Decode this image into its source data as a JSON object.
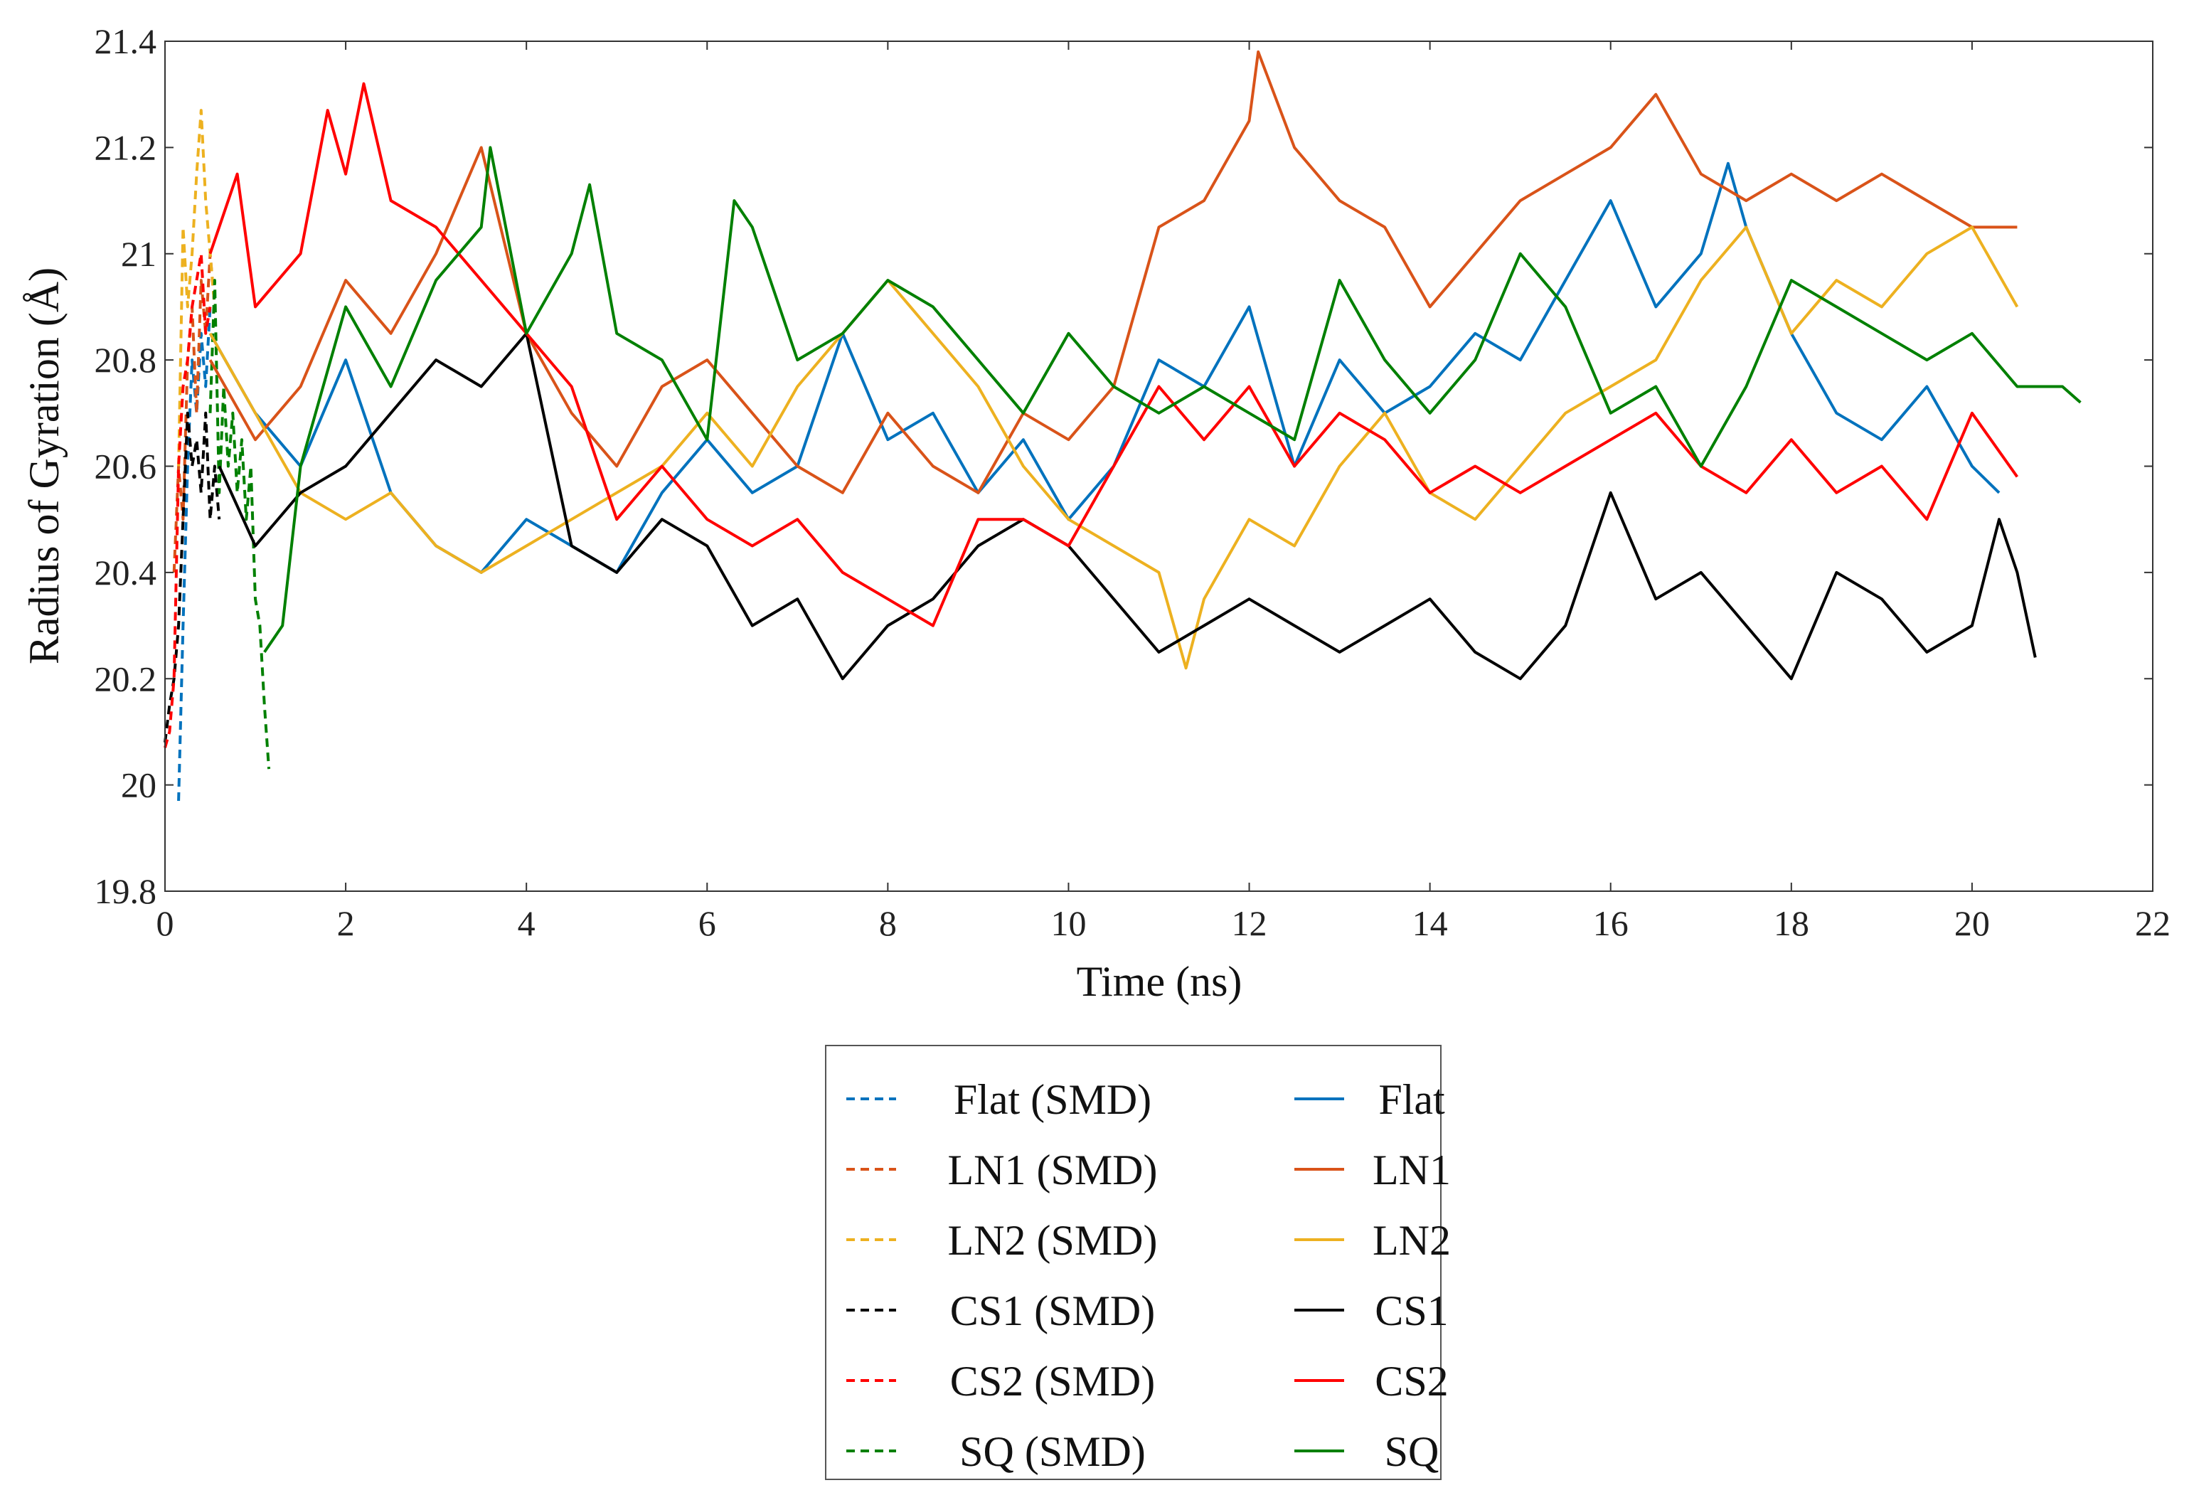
{
  "chart_data": {
    "type": "line",
    "title": "",
    "xlabel": "Time (ns)",
    "ylabel": "Radius of Gyration (Å)",
    "xlim": [
      0,
      22
    ],
    "ylim": [
      19.8,
      21.4
    ],
    "x_ticks": [
      0,
      2,
      4,
      6,
      8,
      10,
      12,
      14,
      16,
      18,
      20,
      22
    ],
    "y_ticks": [
      19.8,
      20,
      20.2,
      20.4,
      20.6,
      20.8,
      21,
      21.2,
      21.4
    ],
    "x_tick_labels": [
      "0",
      "2",
      "4",
      "6",
      "8",
      "10",
      "12",
      "14",
      "16",
      "18",
      "20",
      "22"
    ],
    "y_tick_labels": [
      "19.8",
      "20",
      "20.2",
      "20.4",
      "20.6",
      "20.8",
      "21",
      "21.2",
      "21.4"
    ],
    "grid": false,
    "legend_position": "bottom-center",
    "series": [
      {
        "name": "Flat (SMD)",
        "color": "#0072BD",
        "style": "dashed",
        "x": [
          0.15,
          0.2,
          0.25,
          0.3,
          0.35,
          0.4,
          0.45,
          0.5
        ],
        "y": [
          19.97,
          20.3,
          20.6,
          20.8,
          20.7,
          20.85,
          20.75,
          20.9
        ]
      },
      {
        "name": "LN1 (SMD)",
        "color": "#D95319",
        "style": "dashed",
        "x": [
          0.1,
          0.15,
          0.2,
          0.25,
          0.3,
          0.35,
          0.4,
          0.45,
          0.5,
          0.55
        ],
        "y": [
          20.4,
          20.6,
          20.5,
          20.8,
          20.9,
          20.7,
          20.95,
          20.85,
          21.0,
          20.9
        ]
      },
      {
        "name": "LN2 (SMD)",
        "color": "#EDB120",
        "style": "dashed",
        "x": [
          0.15,
          0.2,
          0.25,
          0.3,
          0.35,
          0.4,
          0.45,
          0.5,
          0.55
        ],
        "y": [
          20.6,
          21.05,
          20.9,
          21.0,
          21.15,
          21.27,
          21.1,
          21.0,
          20.9
        ]
      },
      {
        "name": "CS1 (SMD)",
        "color": "#000000",
        "style": "dashed",
        "x": [
          0.0,
          0.05,
          0.1,
          0.15,
          0.2,
          0.25,
          0.3,
          0.35,
          0.4,
          0.45,
          0.5,
          0.55,
          0.6
        ],
        "y": [
          20.08,
          20.15,
          20.2,
          20.3,
          20.5,
          20.7,
          20.6,
          20.65,
          20.55,
          20.7,
          20.5,
          20.6,
          20.5
        ]
      },
      {
        "name": "CS2 (SMD)",
        "color": "#FF0000",
        "style": "dashed",
        "x": [
          0.0,
          0.05,
          0.1,
          0.15,
          0.2,
          0.25,
          0.3,
          0.35,
          0.4,
          0.45,
          0.5
        ],
        "y": [
          20.07,
          20.1,
          20.2,
          20.6,
          20.75,
          20.8,
          20.9,
          20.95,
          21.0,
          20.85,
          20.9
        ]
      },
      {
        "name": "SQ (SMD)",
        "color": "#008000",
        "style": "dashed",
        "x": [
          0.5,
          0.55,
          0.6,
          0.65,
          0.7,
          0.75,
          0.8,
          0.85,
          0.9,
          0.95,
          1.0,
          1.05,
          1.1,
          1.15
        ],
        "y": [
          20.7,
          20.95,
          20.55,
          20.75,
          20.6,
          20.7,
          20.55,
          20.65,
          20.5,
          20.6,
          20.35,
          20.3,
          20.15,
          20.03
        ]
      },
      {
        "name": "Flat",
        "color": "#0072BD",
        "style": "solid",
        "x": [
          0.5,
          1,
          1.5,
          2,
          2.5,
          3,
          3.5,
          4,
          4.5,
          5,
          5.5,
          6,
          6.5,
          7,
          7.5,
          8,
          8.5,
          9,
          9.5,
          10,
          10.5,
          11,
          11.5,
          12,
          12.5,
          13,
          13.5,
          14,
          14.5,
          15,
          15.5,
          16,
          16.5,
          17,
          17.3,
          17.5,
          18,
          18.5,
          19,
          19.5,
          20,
          20.3
        ],
        "y": [
          20.85,
          20.7,
          20.6,
          20.8,
          20.55,
          20.45,
          20.4,
          20.5,
          20.45,
          20.4,
          20.55,
          20.65,
          20.55,
          20.6,
          20.85,
          20.65,
          20.7,
          20.55,
          20.65,
          20.5,
          20.6,
          20.8,
          20.75,
          20.9,
          20.6,
          20.8,
          20.7,
          20.75,
          20.85,
          20.8,
          20.95,
          21.1,
          20.9,
          21.0,
          21.17,
          21.05,
          20.85,
          20.7,
          20.65,
          20.75,
          20.6,
          20.55
        ]
      },
      {
        "name": "LN1",
        "color": "#D95319",
        "style": "solid",
        "x": [
          0.5,
          1,
          1.5,
          2,
          2.5,
          3,
          3.5,
          4,
          4.5,
          5,
          5.5,
          6,
          6.5,
          7,
          7.5,
          8,
          8.5,
          9,
          9.5,
          10,
          10.5,
          11,
          11.5,
          12,
          12.1,
          12.5,
          13,
          13.5,
          14,
          14.5,
          15,
          15.5,
          16,
          16.5,
          17,
          17.5,
          18,
          18.5,
          19,
          19.5,
          20,
          20.5
        ],
        "y": [
          20.8,
          20.65,
          20.75,
          20.95,
          20.85,
          21.0,
          21.2,
          20.85,
          20.7,
          20.6,
          20.75,
          20.8,
          20.7,
          20.6,
          20.55,
          20.7,
          20.6,
          20.55,
          20.7,
          20.65,
          20.75,
          21.05,
          21.1,
          21.25,
          21.38,
          21.2,
          21.1,
          21.05,
          20.9,
          21.0,
          21.1,
          21.15,
          21.2,
          21.3,
          21.15,
          21.1,
          21.15,
          21.1,
          21.15,
          21.1,
          21.05,
          21.05
        ]
      },
      {
        "name": "LN2",
        "color": "#EDB120",
        "style": "solid",
        "x": [
          0.5,
          1,
          1.5,
          2,
          2.5,
          3,
          3.5,
          4,
          4.5,
          5,
          5.5,
          6,
          6.5,
          7,
          7.5,
          8,
          8.5,
          9,
          9.5,
          10,
          10.5,
          11,
          11.3,
          11.5,
          12,
          12.5,
          13,
          13.5,
          14,
          14.5,
          15,
          15.5,
          16,
          16.5,
          17,
          17.5,
          18,
          18.5,
          19,
          19.5,
          20,
          20.5
        ],
        "y": [
          20.85,
          20.7,
          20.55,
          20.5,
          20.55,
          20.45,
          20.4,
          20.45,
          20.5,
          20.55,
          20.6,
          20.7,
          20.6,
          20.75,
          20.85,
          20.95,
          20.85,
          20.75,
          20.6,
          20.5,
          20.45,
          20.4,
          20.22,
          20.35,
          20.5,
          20.45,
          20.6,
          20.7,
          20.55,
          20.5,
          20.6,
          20.7,
          20.75,
          20.8,
          20.95,
          21.05,
          20.85,
          20.95,
          20.9,
          21.0,
          21.05,
          20.9
        ]
      },
      {
        "name": "CS1",
        "color": "#000000",
        "style": "solid",
        "x": [
          0.6,
          1,
          1.5,
          2,
          2.5,
          3,
          3.5,
          4,
          4.5,
          5,
          5.5,
          6,
          6.5,
          7,
          7.5,
          8,
          8.5,
          9,
          9.5,
          10,
          10.5,
          11,
          11.5,
          12,
          12.5,
          13,
          13.5,
          14,
          14.5,
          15,
          15.5,
          16,
          16.5,
          17,
          17.5,
          18,
          18.5,
          19,
          19.5,
          20,
          20.3,
          20.5,
          20.7
        ],
        "y": [
          20.6,
          20.45,
          20.55,
          20.6,
          20.7,
          20.8,
          20.75,
          20.85,
          20.45,
          20.4,
          20.5,
          20.45,
          20.3,
          20.35,
          20.2,
          20.3,
          20.35,
          20.45,
          20.5,
          20.45,
          20.35,
          20.25,
          20.3,
          20.35,
          20.3,
          20.25,
          20.3,
          20.35,
          20.25,
          20.2,
          20.3,
          20.55,
          20.35,
          20.4,
          20.3,
          20.2,
          20.4,
          20.35,
          20.25,
          20.3,
          20.5,
          20.4,
          20.24
        ]
      },
      {
        "name": "CS2",
        "color": "#FF0000",
        "style": "solid",
        "x": [
          0.5,
          0.8,
          1,
          1.5,
          1.8,
          2,
          2.2,
          2.5,
          3,
          3.5,
          4,
          4.5,
          5,
          5.5,
          6,
          6.5,
          7,
          7.5,
          8,
          8.5,
          9,
          9.5,
          10,
          10.5,
          11,
          11.5,
          12,
          12.5,
          13,
          13.5,
          14,
          14.5,
          15,
          15.5,
          16,
          16.5,
          17,
          17.5,
          18,
          18.5,
          19,
          19.5,
          20,
          20.5
        ],
        "y": [
          21.0,
          21.15,
          20.9,
          21.0,
          21.27,
          21.15,
          21.32,
          21.1,
          21.05,
          20.95,
          20.85,
          20.75,
          20.5,
          20.6,
          20.5,
          20.45,
          20.5,
          20.4,
          20.35,
          20.3,
          20.5,
          20.5,
          20.45,
          20.6,
          20.75,
          20.65,
          20.75,
          20.6,
          20.7,
          20.65,
          20.55,
          20.6,
          20.55,
          20.6,
          20.65,
          20.7,
          20.6,
          20.55,
          20.65,
          20.55,
          20.6,
          20.5,
          20.7,
          20.58
        ]
      },
      {
        "name": "SQ",
        "color": "#008000",
        "style": "solid",
        "x": [
          1.1,
          1.3,
          1.5,
          2,
          2.5,
          3,
          3.5,
          3.6,
          4,
          4.5,
          4.7,
          5,
          5.5,
          6,
          6.3,
          6.5,
          7,
          7.5,
          8,
          8.5,
          9,
          9.5,
          10,
          10.5,
          11,
          11.5,
          12,
          12.5,
          13,
          13.5,
          14,
          14.5,
          15,
          15.5,
          16,
          16.5,
          17,
          17.5,
          18,
          18.5,
          19,
          19.5,
          20,
          20.5,
          21,
          21.2
        ],
        "y": [
          20.25,
          20.3,
          20.6,
          20.9,
          20.75,
          20.95,
          21.05,
          21.2,
          20.85,
          21.0,
          21.13,
          20.85,
          20.8,
          20.65,
          21.1,
          21.05,
          20.8,
          20.85,
          20.95,
          20.9,
          20.8,
          20.7,
          20.85,
          20.75,
          20.7,
          20.75,
          20.7,
          20.65,
          20.95,
          20.8,
          20.7,
          20.8,
          21.0,
          20.9,
          20.7,
          20.75,
          20.6,
          20.75,
          20.95,
          20.9,
          20.85,
          20.8,
          20.85,
          20.75,
          20.75,
          20.72
        ]
      }
    ]
  }
}
